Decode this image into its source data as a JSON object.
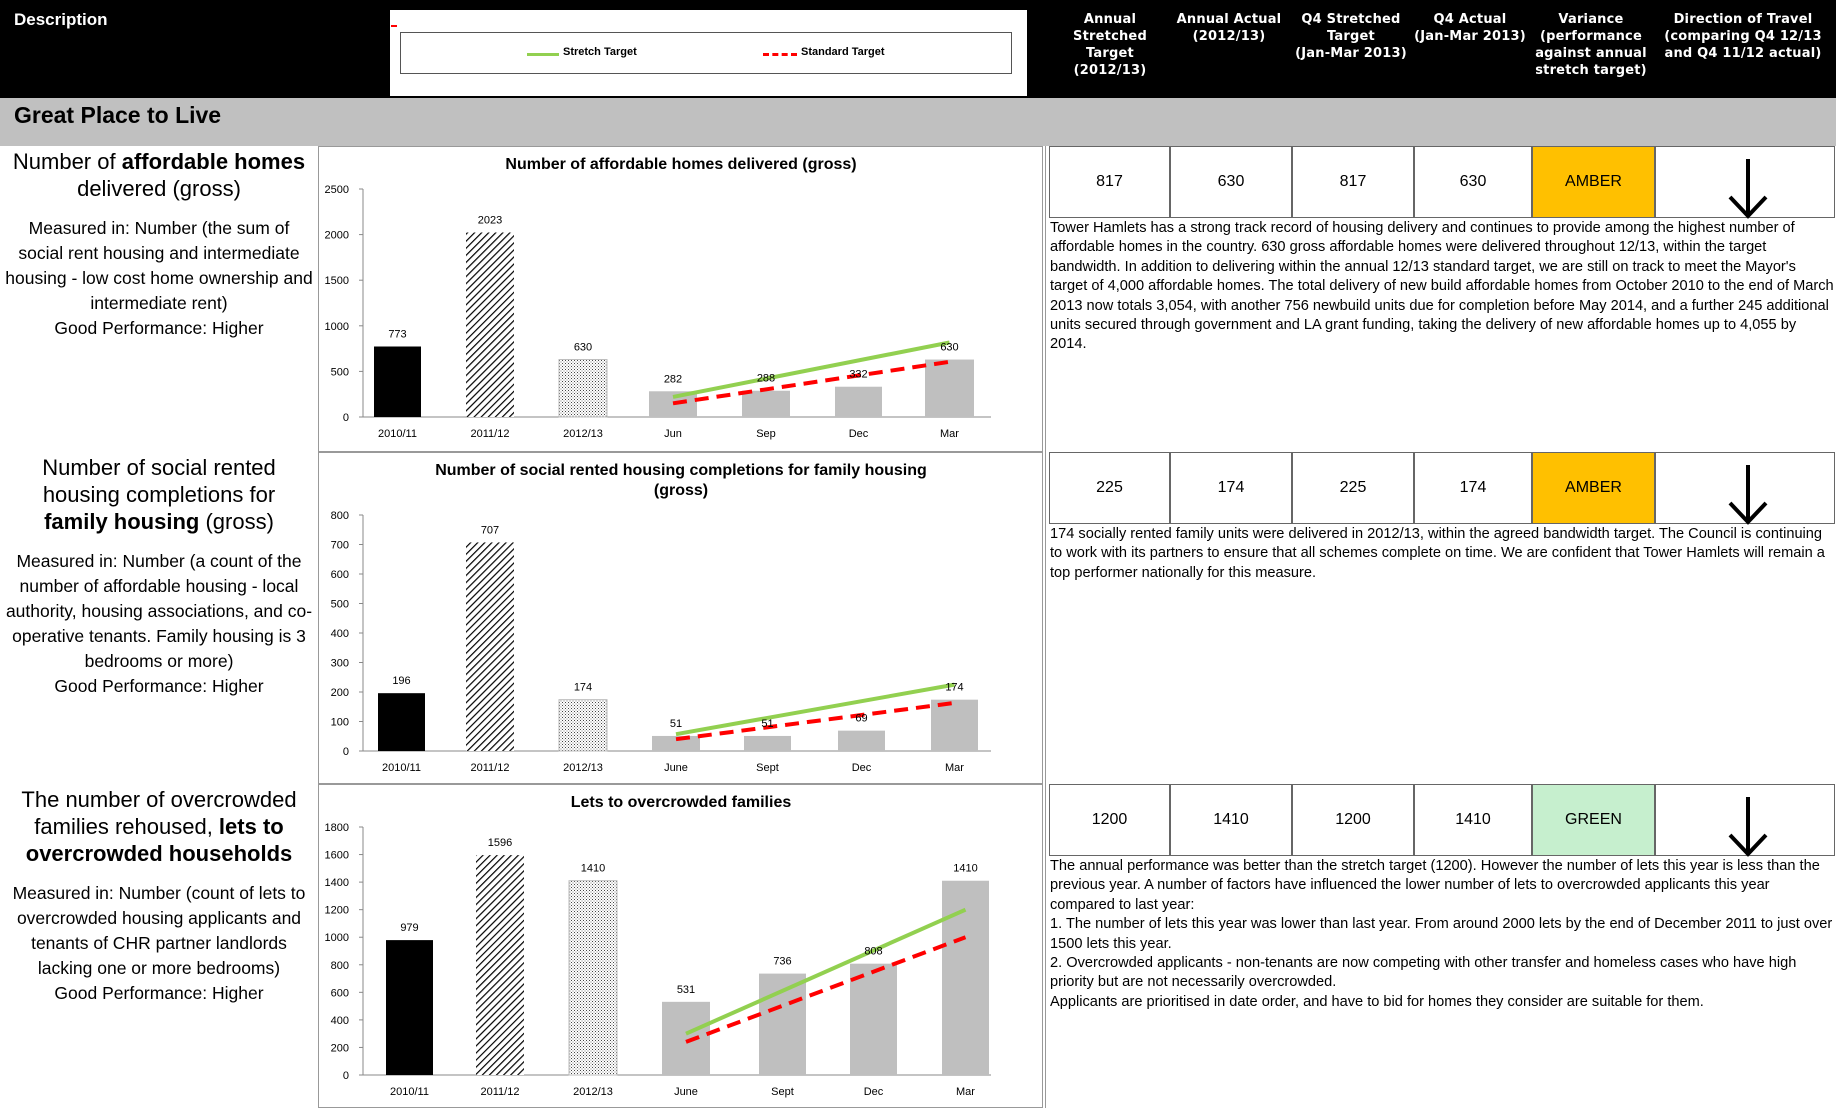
{
  "header": {
    "description_label": "Description",
    "legend": {
      "stretch": "Stretch Target",
      "standard": "Standard Target"
    },
    "columns": [
      {
        "lines": [
          "Annual",
          "Stretched",
          "Target",
          "(2012/13)"
        ]
      },
      {
        "lines": [
          "Annual Actual",
          "(2012/13)"
        ]
      },
      {
        "lines": [
          "Q4 Stretched",
          "Target",
          "(Jan-Mar 2013)"
        ]
      },
      {
        "lines": [
          "Q4 Actual",
          "(Jan-Mar 2013)"
        ]
      },
      {
        "lines": [
          "Variance",
          "(performance",
          "against annual",
          "stretch target)"
        ]
      },
      {
        "lines": [
          "Direction of Travel",
          "(comparing Q4 12/13",
          "and Q4 11/12 actual)"
        ]
      }
    ]
  },
  "section": {
    "title": "Great Place to Live"
  },
  "colors": {
    "black": "#000000",
    "grey": "#bfbfbf",
    "stretch_line": "#92d050",
    "standard_line": "#ff0000",
    "amber": "#ffc000",
    "green": "#c6efce"
  },
  "kpis": [
    {
      "title_lines": [
        [
          {
            "text": "Number of ",
            "bold": false
          },
          {
            "text": "affordable homes",
            "bold": true
          }
        ],
        [
          {
            "text": "delivered (gross)",
            "bold": false
          }
        ]
      ],
      "measured_in": "Measured in: Number (the sum of social rent housing and intermediate housing - low cost home ownership and intermediate rent)",
      "good_performance": "Good Performance: Higher",
      "values": {
        "annual_target": "817",
        "annual_actual": "630",
        "q4_target": "817",
        "q4_actual": "630",
        "variance": "AMBER",
        "direction": "down-arrow-icon"
      },
      "comment": [
        "Tower Hamlets has a strong track record of housing delivery and continues to provide among the highest number of affordable homes in the country. 630 gross affordable homes were delivered throughout 12/13, within the target bandwidth. In addition to delivering within the annual 12/13 standard target, we are still on track to meet the Mayor's target of 4,000 affordable homes. The total delivery of new build affordable homes from October 2010 to the end of March 2013 now totals 3,054, with another 756 newbuild units due for completion before May 2014, and a further 245 additional units secured through government and LA grant funding, taking the delivery of new affordable homes up to 4,055 by 2014."
      ]
    },
    {
      "title_lines": [
        [
          {
            "text": "Number of social rented",
            "bold": false
          }
        ],
        [
          {
            "text": "housing completions for",
            "bold": false
          }
        ],
        [
          {
            "text": "family housing",
            "bold": true
          },
          {
            "text": " (gross)",
            "bold": false
          }
        ]
      ],
      "measured_in": "Measured in: Number (a count of the number of affordable housing - local authority, housing associations, and co-operative tenants.  Family housing is 3 bedrooms or more)",
      "good_performance": "Good Performance: Higher",
      "values": {
        "annual_target": "225",
        "annual_actual": "174",
        "q4_target": "225",
        "q4_actual": "174",
        "variance": "AMBER",
        "direction": "down-arrow-icon"
      },
      "comment": [
        "174 socially rented family units were delivered in 2012/13, within the agreed bandwidth target. The Council is continuing to work with its partners to ensure that all schemes complete on time. We are confident that Tower Hamlets will remain a top performer nationally for this measure."
      ]
    },
    {
      "title_lines": [
        [
          {
            "text": "The number of overcrowded",
            "bold": false
          }
        ],
        [
          {
            "text": "families rehoused, ",
            "bold": false
          },
          {
            "text": "lets to",
            "bold": true
          }
        ],
        [
          {
            "text": "overcrowded households",
            "bold": true
          }
        ]
      ],
      "measured_in": "Measured in: Number (count of lets to overcrowded housing applicants and tenants of CHR partner landlords lacking one or more bedrooms)",
      "good_performance": "Good Performance: Higher",
      "values": {
        "annual_target": "1200",
        "annual_actual": "1410",
        "q4_target": "1200",
        "q4_actual": "1410",
        "variance": "GREEN",
        "direction": "down-arrow-icon"
      },
      "comment": [
        "The annual performance was better than the stretch target (1200). However the number of lets this year is less than the previous year. A number of factors have influenced the lower number of lets to overcrowded applicants this year compared to last year:",
        "1. The number of lets this year was  lower than last year. From around 2000 lets by the end of December 2011 to just over 1500 lets this year.",
        "2. Overcrowded applicants - non-tenants are now competing with other transfer and homeless cases who have high priority but are not necessarily overcrowded.",
        " Applicants are prioritised in date order, and have to bid for homes they consider are suitable for them."
      ]
    }
  ],
  "chart_data": [
    {
      "type": "bar",
      "title": "Number of affordable homes delivered (gross)",
      "categories": [
        "2010/11",
        "2011/12",
        "2012/13",
        "Jun",
        "Sep",
        "Dec",
        "Mar"
      ],
      "values": [
        773,
        2023,
        630,
        282,
        288,
        332,
        630
      ],
      "bar_styles": [
        "black",
        "hatch",
        "dots",
        "grey",
        "grey",
        "grey",
        "grey"
      ],
      "ylim": [
        0,
        2500
      ],
      "yticks": [
        0,
        500,
        1000,
        1500,
        2000,
        2500
      ],
      "lines": [
        {
          "name": "Stretch Target",
          "style": "stretch",
          "points": [
            [
              "Jun",
              220
            ],
            [
              "Mar",
              817
            ]
          ]
        },
        {
          "name": "Standard Target",
          "style": "standard",
          "points": [
            [
              "Jun",
              150
            ],
            [
              "Mar",
              605
            ]
          ]
        }
      ],
      "grid": false
    },
    {
      "type": "bar",
      "title": "Number of social rented housing completions for family housing (gross)",
      "categories": [
        "2010/11",
        "2011/12",
        "2012/13",
        "June",
        "Sept",
        "Dec",
        "Mar"
      ],
      "values": [
        196,
        707,
        174,
        51,
        51,
        69,
        174
      ],
      "bar_styles": [
        "black",
        "hatch",
        "dots",
        "grey",
        "grey",
        "grey",
        "grey"
      ],
      "ylim": [
        0,
        800
      ],
      "yticks": [
        0,
        100,
        200,
        300,
        400,
        500,
        600,
        700,
        800
      ],
      "lines": [
        {
          "name": "Stretch Target",
          "style": "stretch",
          "points": [
            [
              "June",
              57
            ],
            [
              "Mar",
              225
            ]
          ]
        },
        {
          "name": "Standard Target",
          "style": "standard",
          "points": [
            [
              "June",
              40
            ],
            [
              "Mar",
              163
            ]
          ]
        }
      ],
      "grid": false
    },
    {
      "type": "bar",
      "title": "Lets to overcrowded families",
      "categories": [
        "2010/11",
        "2011/12",
        "2012/13",
        "June",
        "Sept",
        "Dec",
        "Mar"
      ],
      "values": [
        979,
        1596,
        1410,
        531,
        736,
        808,
        1410
      ],
      "bar_styles": [
        "black",
        "hatch",
        "dots",
        "grey",
        "grey",
        "grey",
        "grey"
      ],
      "ylim": [
        0,
        1800
      ],
      "yticks": [
        0,
        200,
        400,
        600,
        800,
        1000,
        1200,
        1400,
        1600,
        1800
      ],
      "lines": [
        {
          "name": "Stretch Target",
          "style": "stretch",
          "points": [
            [
              "June",
              300
            ],
            [
              "Mar",
              1200
            ]
          ]
        },
        {
          "name": "Standard Target",
          "style": "standard",
          "points": [
            [
              "June",
              240
            ],
            [
              "Mar",
              1000
            ]
          ]
        }
      ],
      "grid": false
    }
  ]
}
